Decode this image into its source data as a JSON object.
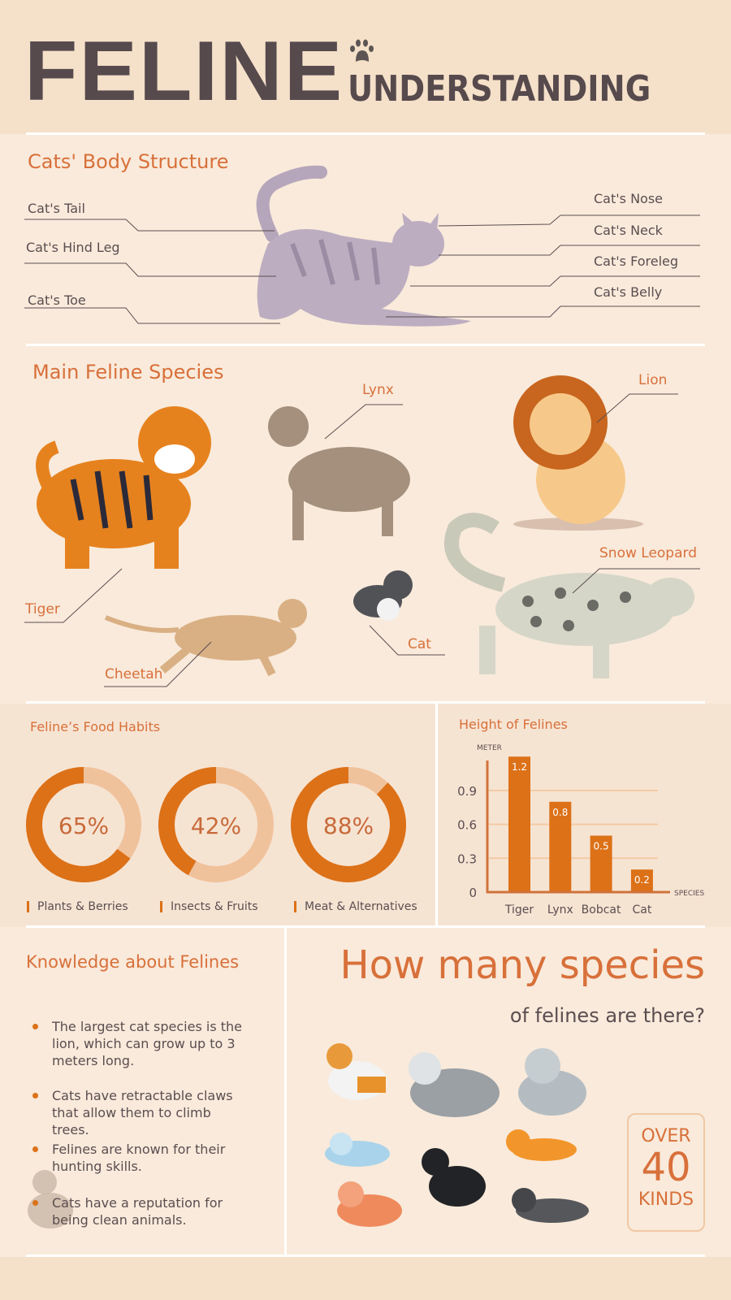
{
  "header": {
    "title": "FELINE",
    "subtitle": "UNDERSTANDING",
    "icon": "paw-icon"
  },
  "body_structure": {
    "title": "Cats' Body Structure",
    "left_labels": [
      "Cat's Tail",
      "Cat's Hind Leg",
      "Cat's Toe"
    ],
    "right_labels": [
      "Cat's Nose",
      "Cat's Neck",
      "Cat's Foreleg",
      "Cat's Belly"
    ]
  },
  "species": {
    "title": "Main Feline Species",
    "labels": {
      "lynx": "Lynx",
      "lion": "Lion",
      "snow_leopard": "Snow Leopard",
      "tiger": "Tiger",
      "cheetah": "Cheetah",
      "cat": "Cat"
    }
  },
  "food": {
    "title": "Feline’s Food Habits",
    "items": [
      {
        "value": 65,
        "text": "65%",
        "label": "Plants & Berries"
      },
      {
        "value": 42,
        "text": "42%",
        "label": "Insects & Fruits"
      },
      {
        "value": 88,
        "text": "88%",
        "label": "Meat & Alternatives"
      }
    ],
    "colors": {
      "fill": "#dc7118",
      "track": "#f0c29c"
    }
  },
  "chart_data": {
    "type": "bar",
    "title": "Height of Felines",
    "ylabel": "METER",
    "xlabel": "SPECIES",
    "categories": [
      "Tiger",
      "Lynx",
      "Bobcat",
      "Cat"
    ],
    "values": [
      1.2,
      0.8,
      0.5,
      0.2
    ],
    "value_labels": [
      "1.2",
      "0.8",
      "0.5",
      "0.2"
    ],
    "yticks": [
      "0",
      "0.3",
      "0.6",
      "0.9"
    ],
    "ytick_values": [
      0,
      0.3,
      0.6,
      0.9
    ],
    "grid": true,
    "color": "#dc7118"
  },
  "knowledge": {
    "title": "Knowledge about Felines",
    "facts": [
      "The largest cat species is the lion, which can grow up to 3 meters long.",
      "Cats have retractable claws that allow them to climb trees.",
      "Felines are known for their hunting skills.",
      "Cats have a reputation for being clean animals."
    ]
  },
  "species_count": {
    "headline": "How many species",
    "subline": "of felines are there?",
    "over": "OVER",
    "number": "40",
    "kinds": "KINDS"
  }
}
